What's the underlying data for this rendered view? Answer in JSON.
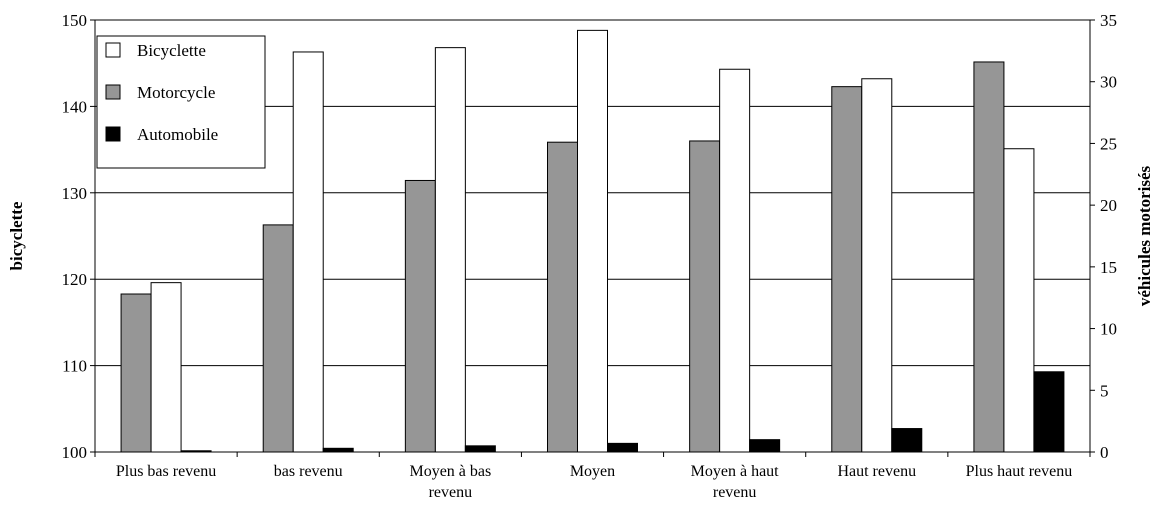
{
  "chart_data": {
    "type": "bar",
    "title": "",
    "categories": [
      [
        "Plus bas revenu"
      ],
      [
        "bas revenu"
      ],
      [
        "Moyen à bas",
        "revenu"
      ],
      [
        "Moyen"
      ],
      [
        "Moyen à haut",
        "revenu"
      ],
      [
        "Haut revenu"
      ],
      [
        "Plus haut revenu"
      ]
    ],
    "ylabel_left": "bicyclette",
    "ylabel_right": "véhicules motorisés",
    "ylim_left": [
      100,
      150
    ],
    "yticks_left": [
      100,
      110,
      120,
      130,
      140,
      150
    ],
    "ylim_right": [
      0,
      35
    ],
    "yticks_right": [
      0,
      5,
      10,
      15,
      20,
      25,
      30,
      35
    ],
    "grid": true,
    "legend_position": "top-left",
    "series": [
      {
        "name": "Motorcycle",
        "axis": "right",
        "color": "#969696",
        "values": [
          12.8,
          18.4,
          22.0,
          25.1,
          25.2,
          29.6,
          31.6
        ]
      },
      {
        "name": "Bicyclette",
        "axis": "left",
        "color": "#ffffff",
        "values": [
          119.6,
          146.3,
          146.8,
          148.8,
          144.3,
          143.2,
          135.1
        ]
      },
      {
        "name": "Automobile",
        "axis": "right",
        "color": "#000000",
        "values": [
          0.1,
          0.3,
          0.5,
          0.7,
          1.0,
          1.9,
          6.5
        ]
      }
    ],
    "legend": [
      {
        "name": "Bicyclette",
        "color": "#ffffff"
      },
      {
        "name": "Motorcycle",
        "color": "#969696"
      },
      {
        "name": "Automobile",
        "color": "#000000"
      }
    ]
  }
}
